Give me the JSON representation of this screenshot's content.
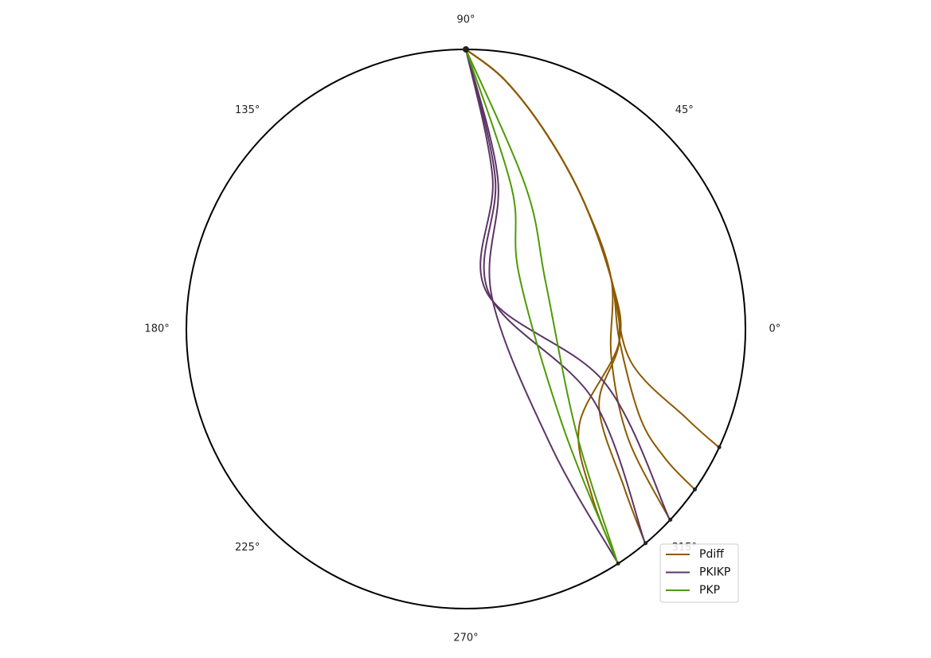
{
  "chart_data": {
    "type": "line",
    "projection": "polar",
    "grid": false,
    "legend_placement": "lower-right",
    "theta_ticks": [
      "0°",
      "45°",
      "90°",
      "135°",
      "180°",
      "225°",
      "270°",
      "315°"
    ],
    "title": "",
    "source_marker_deg": 90,
    "station_markers_deg": [
      335,
      325,
      317,
      310,
      303
    ],
    "series": [
      {
        "name": "Pdiff",
        "color": "#8B5A00",
        "rays": [
          [
            [
              1.0,
              90
            ],
            [
              0.9,
              81
            ],
            [
              0.75,
              67
            ],
            [
              0.62,
              47
            ],
            [
              0.55,
              19
            ],
            [
              0.6,
              -11
            ],
            [
              0.85,
              -22
            ],
            [
              0.995,
              -25
            ]
          ],
          [
            [
              1.0,
              90
            ],
            [
              0.9,
              81
            ],
            [
              0.75,
              67
            ],
            [
              0.62,
              47
            ],
            [
              0.55,
              19
            ],
            [
              0.55,
              -4
            ],
            [
              0.7,
              -27
            ],
            [
              0.85,
              -33
            ],
            [
              0.995,
              -35
            ]
          ],
          [
            [
              1.0,
              90
            ],
            [
              0.9,
              81
            ],
            [
              0.75,
              67
            ],
            [
              0.62,
              47
            ],
            [
              0.55,
              19
            ],
            [
              0.53,
              -11
            ],
            [
              0.7,
              -34
            ],
            [
              0.995,
              -43
            ]
          ],
          [
            [
              1.0,
              90
            ],
            [
              0.9,
              81
            ],
            [
              0.75,
              67
            ],
            [
              0.62,
              47
            ],
            [
              0.55,
              19
            ],
            [
              0.55,
              -5
            ],
            [
              0.55,
              -30
            ],
            [
              0.8,
              -45
            ],
            [
              0.995,
              -50
            ]
          ],
          [
            [
              1.0,
              90
            ],
            [
              0.9,
              81
            ],
            [
              0.75,
              67
            ],
            [
              0.62,
              47
            ],
            [
              0.55,
              19
            ],
            [
              0.55,
              -5
            ],
            [
              0.53,
              -40
            ],
            [
              0.75,
              -53
            ],
            [
              0.995,
              -57
            ]
          ]
        ]
      },
      {
        "name": "PKIKP",
        "color": "#5C3566",
        "rays": [
          [
            [
              1.0,
              90
            ],
            [
              0.55,
              80
            ],
            [
              0.15,
              60
            ],
            [
              0.53,
              -21
            ],
            [
              0.995,
              -43
            ]
          ],
          [
            [
              1.0,
              90
            ],
            [
              0.55,
              79
            ],
            [
              0.15,
              56
            ],
            [
              0.52,
              -29
            ],
            [
              0.995,
              -50
            ]
          ],
          [
            [
              1.0,
              90
            ],
            [
              0.55,
              78
            ],
            [
              0.15,
              52
            ],
            [
              0.52,
              -54
            ],
            [
              0.995,
              -57
            ]
          ]
        ]
      },
      {
        "name": "PKP",
        "color": "#4E9A06",
        "rays": [
          [
            [
              1.0,
              90
            ],
            [
              0.55,
              67
            ],
            [
              0.33,
              30
            ],
            [
              0.54,
              -43
            ],
            [
              0.995,
              -57
            ]
          ],
          [
            [
              1.0,
              90
            ],
            [
              0.53,
              72
            ],
            [
              0.27,
              45
            ],
            [
              0.49,
              -45
            ],
            [
              0.995,
              -57
            ]
          ]
        ]
      }
    ]
  }
}
